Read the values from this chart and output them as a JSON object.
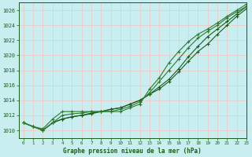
{
  "title": "Graphe pression niveau de la mer (hPa)",
  "background_color": "#c8eef0",
  "grid_color": "#f0c8c8",
  "line_color_dark": "#1a5c1a",
  "line_color_mid": "#2d7a2d",
  "xlim": [
    -0.5,
    23
  ],
  "ylim": [
    1009.0,
    1027.0
  ],
  "yticks": [
    1010,
    1012,
    1014,
    1016,
    1018,
    1020,
    1022,
    1024,
    1026
  ],
  "xticks": [
    0,
    1,
    2,
    3,
    4,
    5,
    6,
    7,
    8,
    9,
    10,
    11,
    12,
    13,
    14,
    15,
    16,
    17,
    18,
    19,
    20,
    21,
    22,
    23
  ],
  "series": [
    [
      1011.0,
      1010.5,
      1010.0,
      1011.0,
      1011.5,
      1011.8,
      1012.0,
      1012.3,
      1012.5,
      1012.8,
      1013.0,
      1013.5,
      1014.0,
      1014.8,
      1015.5,
      1016.5,
      1017.8,
      1019.2,
      1020.5,
      1021.5,
      1022.8,
      1024.0,
      1025.2,
      1026.2
    ],
    [
      1011.0,
      1010.5,
      1010.0,
      1011.0,
      1011.5,
      1011.8,
      1012.0,
      1012.2,
      1012.5,
      1012.8,
      1013.0,
      1013.5,
      1014.0,
      1014.8,
      1015.8,
      1016.8,
      1018.2,
      1019.8,
      1021.2,
      1022.5,
      1023.5,
      1024.5,
      1025.5,
      1026.5
    ],
    [
      1011.0,
      1010.5,
      1010.0,
      1011.0,
      1012.0,
      1012.2,
      1012.3,
      1012.5,
      1012.5,
      1012.5,
      1012.8,
      1013.2,
      1013.8,
      1015.0,
      1016.5,
      1018.0,
      1019.5,
      1021.0,
      1022.3,
      1023.2,
      1024.0,
      1025.0,
      1025.8,
      1026.5
    ],
    [
      1011.0,
      1010.5,
      1010.2,
      1011.5,
      1012.5,
      1012.5,
      1012.5,
      1012.5,
      1012.5,
      1012.5,
      1012.5,
      1013.0,
      1013.5,
      1015.5,
      1017.0,
      1019.0,
      1020.5,
      1021.8,
      1022.8,
      1023.5,
      1024.3,
      1025.2,
      1026.0,
      1026.8
    ]
  ]
}
